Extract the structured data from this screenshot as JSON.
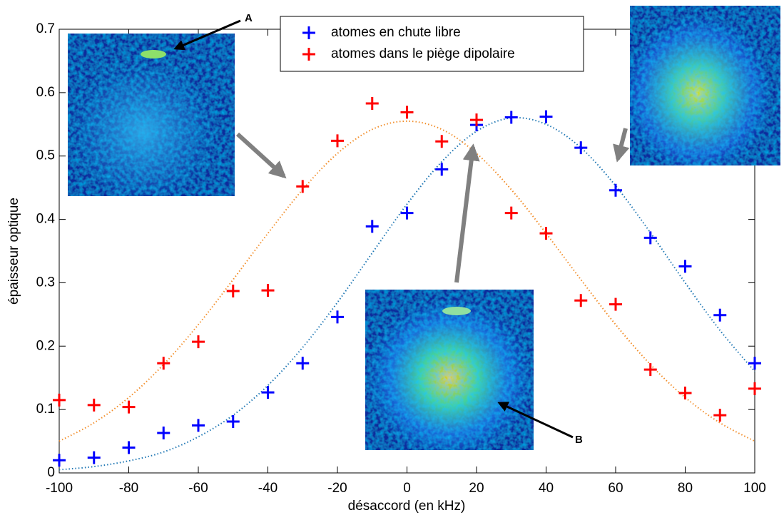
{
  "chart_data": {
    "type": "scatter",
    "xlabel": "désaccord (en kHz)",
    "ylabel": "épaisseur optique",
    "x": [
      -100,
      -90,
      -80,
      -70,
      -60,
      -50,
      -40,
      -30,
      -20,
      -10,
      0,
      10,
      20,
      30,
      40,
      50,
      60,
      70,
      80,
      90,
      100
    ],
    "series": [
      {
        "name": "atomes en chute libre",
        "color": "#0000ff",
        "values": [
          0.02,
          0.024,
          0.04,
          0.063,
          0.075,
          0.081,
          0.127,
          0.173,
          0.246,
          0.389,
          0.41,
          0.479,
          0.549,
          0.561,
          0.562,
          0.513,
          0.446,
          0.371,
          0.326,
          0.249,
          0.173
        ]
      },
      {
        "name": "atomes dans le piège dipolaire",
        "color": "#ff0000",
        "values": [
          0.115,
          0.107,
          0.104,
          0.173,
          0.207,
          0.287,
          0.288,
          0.452,
          0.524,
          0.583,
          0.569,
          0.523,
          0.557,
          0.41,
          0.378,
          0.272,
          0.266,
          0.163,
          0.126,
          0.091,
          0.133
        ]
      }
    ],
    "fits": [
      {
        "color": "#1f77b4",
        "values": [
          0.005,
          0.01,
          0.019,
          0.033,
          0.057,
          0.091,
          0.138,
          0.198,
          0.269,
          0.347,
          0.424,
          0.491,
          0.539,
          0.56,
          0.55,
          0.513,
          0.453,
          0.379,
          0.3,
          0.225,
          0.16
        ]
      },
      {
        "color": "#f28e2b",
        "values": [
          0.05,
          0.079,
          0.119,
          0.171,
          0.234,
          0.305,
          0.378,
          0.447,
          0.504,
          0.542,
          0.555,
          0.542,
          0.504,
          0.447,
          0.378,
          0.305,
          0.234,
          0.171,
          0.119,
          0.079,
          0.05
        ]
      }
    ],
    "xlim": [
      -100,
      100
    ],
    "xticks": [
      -100,
      -80,
      -60,
      -40,
      -20,
      0,
      20,
      40,
      60,
      80,
      100
    ],
    "ylim": [
      0,
      0.7
    ],
    "yticks": [
      0,
      0.1,
      0.2,
      0.3,
      0.4,
      0.5,
      0.6,
      0.7
    ],
    "annotations": [
      "A",
      "B"
    ]
  }
}
